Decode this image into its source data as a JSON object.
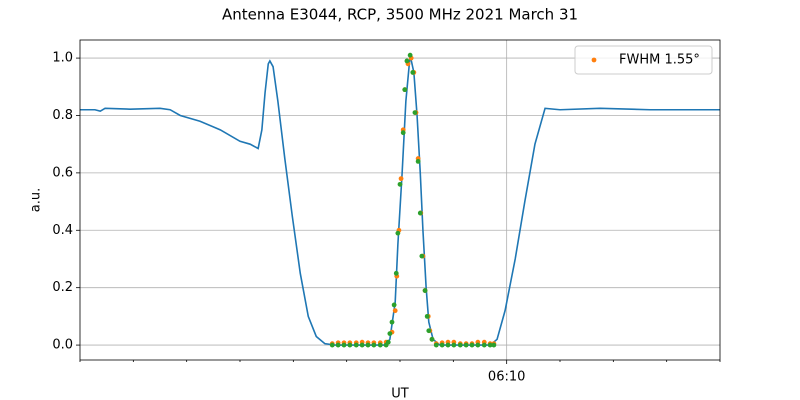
{
  "chart_data": {
    "type": "line",
    "title": "Antenna E3044, RCP, 3500 MHz 2021 March 31",
    "xlabel": "UT",
    "ylabel": "a.u.",
    "xlim": [
      2,
      14
    ],
    "ylim": [
      -0.052,
      1.063
    ],
    "xticks": [
      {
        "value": 10,
        "label": "06:10"
      }
    ],
    "xminorticks": [
      2,
      3,
      4,
      5,
      6,
      7,
      8,
      9,
      11,
      12,
      13,
      14
    ],
    "yticks": [
      {
        "value": 0,
        "label": "0.0"
      },
      {
        "value": 0.2,
        "label": "0.2"
      },
      {
        "value": 0.4,
        "label": "0.4"
      },
      {
        "value": 0.6,
        "label": "0.6"
      },
      {
        "value": 0.8,
        "label": "0.8"
      },
      {
        "value": 1,
        "label": "1.0"
      }
    ],
    "grid": true,
    "legend": "upper right",
    "series": [
      {
        "type": "line",
        "color": "#1f77b4",
        "x": [
          2.0,
          2.28,
          2.38,
          2.47,
          2.94,
          3.5,
          3.69,
          3.88,
          4.25,
          4.63,
          5.0,
          5.19,
          5.34,
          5.41,
          5.47,
          5.53,
          5.56,
          5.62,
          5.71,
          5.84,
          5.98,
          6.13,
          6.28,
          6.43,
          6.59,
          6.78,
          7.72,
          7.81,
          7.91,
          7.96,
          8.04,
          8.11,
          8.19,
          8.26,
          8.32,
          8.38,
          8.43,
          8.49,
          8.54,
          8.62,
          8.75,
          9.69,
          9.82,
          9.97,
          10.16,
          10.34,
          10.53,
          10.72,
          11.0,
          11.75,
          12.69,
          13.63,
          14.0
        ],
        "values": [
          0.82,
          0.82,
          0.815,
          0.825,
          0.822,
          0.825,
          0.82,
          0.8,
          0.78,
          0.75,
          0.71,
          0.7,
          0.685,
          0.75,
          0.88,
          0.98,
          0.99,
          0.97,
          0.85,
          0.65,
          0.45,
          0.25,
          0.1,
          0.03,
          0.005,
          0,
          0,
          0.02,
          0.15,
          0.35,
          0.6,
          0.85,
          1.01,
          0.95,
          0.8,
          0.6,
          0.4,
          0.2,
          0.08,
          0.02,
          0,
          0,
          0.02,
          0.12,
          0.3,
          0.5,
          0.7,
          0.825,
          0.82,
          0.825,
          0.82,
          0.82,
          0.82
        ]
      },
      {
        "type": "scatter",
        "name": "FWHM 1.55°",
        "color": "#ff7f0e",
        "x": [
          6.73,
          6.84,
          6.95,
          7.06,
          7.18,
          7.29,
          7.4,
          7.51,
          7.63,
          7.74,
          7.85,
          7.91,
          7.94,
          7.98,
          8.02,
          8.06,
          8.09,
          8.15,
          8.21,
          8.26,
          8.3,
          8.34,
          8.39,
          8.43,
          8.47,
          8.53,
          8.56,
          8.6,
          8.68,
          8.79,
          8.9,
          9.01,
          9.13,
          9.24,
          9.35,
          9.46,
          9.58,
          9.69,
          9.76
        ],
        "values": [
          0.005,
          0.008,
          0.008,
          0.008,
          0.008,
          0.01,
          0.008,
          0.008,
          0.008,
          0.01,
          0.045,
          0.12,
          0.24,
          0.4,
          0.58,
          0.75,
          0.89,
          0.98,
          1.0,
          0.95,
          0.81,
          0.65,
          0.46,
          0.31,
          0.19,
          0.1,
          0.05,
          0.02,
          0.005,
          0.008,
          0.01,
          0.01,
          0.005,
          0.005,
          0.005,
          0.01,
          0.01,
          0.005,
          0.005
        ]
      },
      {
        "type": "scatter",
        "color": "#2ca02c",
        "x": [
          6.73,
          6.84,
          6.95,
          7.06,
          7.18,
          7.29,
          7.4,
          7.51,
          7.63,
          7.74,
          7.78,
          7.81,
          7.85,
          7.89,
          7.93,
          7.96,
          8.0,
          8.06,
          8.09,
          8.13,
          8.19,
          8.24,
          8.28,
          8.34,
          8.38,
          8.41,
          8.47,
          8.51,
          8.54,
          8.6,
          8.68,
          8.79,
          8.9,
          9.01,
          9.13,
          9.24,
          9.35,
          9.46,
          9.58,
          9.69,
          9.76
        ],
        "values": [
          0,
          0,
          0,
          0,
          0,
          0,
          0,
          0,
          0,
          0,
          0.01,
          0.04,
          0.08,
          0.14,
          0.25,
          0.39,
          0.56,
          0.74,
          0.89,
          0.99,
          1.01,
          0.95,
          0.81,
          0.64,
          0.46,
          0.31,
          0.19,
          0.1,
          0.05,
          0.02,
          0,
          0,
          0,
          0,
          0,
          0,
          0,
          0,
          0,
          0,
          0
        ]
      }
    ]
  }
}
